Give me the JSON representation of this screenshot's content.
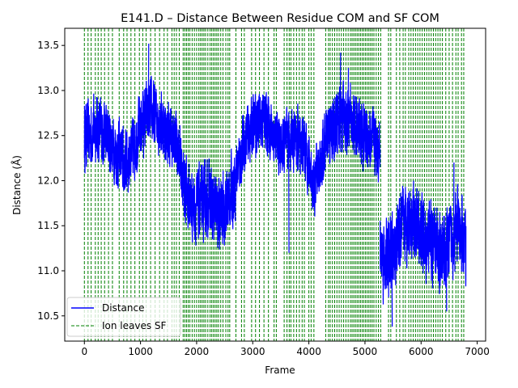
{
  "chart_data": {
    "type": "line",
    "title": "E141.D – Distance Between Residue COM and SF COM",
    "xlabel": "Frame",
    "ylabel": "Distance (Å)",
    "xlim": [
      -350,
      7150
    ],
    "ylim": [
      10.22,
      13.69
    ],
    "xticks": [
      0,
      1000,
      2000,
      3000,
      4000,
      5000,
      6000,
      7000
    ],
    "yticks": [
      10.5,
      11.0,
      11.5,
      12.0,
      12.5,
      13.0,
      13.5
    ],
    "grid": false,
    "legend": {
      "placement": "lower-left",
      "entries": [
        {
          "label": "Distance",
          "color": "#0000ff",
          "style": "solid"
        },
        {
          "label": "Ion leaves SF",
          "color": "#008000",
          "style": "dashed"
        }
      ]
    },
    "series": [
      {
        "name": "Distance",
        "color": "#0000ff",
        "segments": [
          {
            "x": [
              0,
              100,
              200,
              300,
              400,
              500,
              600,
              700,
              800,
              900,
              1000,
              1100,
              1200,
              1300,
              1400,
              1500,
              1600,
              1700
            ],
            "mean": [
              12.5,
              12.5,
              12.6,
              12.55,
              12.5,
              12.4,
              12.3,
              12.2,
              12.25,
              12.4,
              12.6,
              12.7,
              12.75,
              12.7,
              12.6,
              12.5,
              12.45,
              12.35
            ],
            "amp": 0.32
          },
          {
            "x": [
              1700,
              1800,
              1900,
              2000,
              2100,
              2200,
              2300,
              2400,
              2500,
              2600,
              2700
            ],
            "mean": [
              12.2,
              11.9,
              11.75,
              11.7,
              11.75,
              11.8,
              11.7,
              11.6,
              11.7,
              11.85,
              12.0
            ],
            "amp": 0.35
          },
          {
            "x": [
              2700,
              2800,
              2900,
              3000,
              3100,
              3200,
              3300,
              3400,
              3500,
              3600,
              3700,
              3800,
              3900,
              4000,
              4100
            ],
            "mean": [
              12.1,
              12.3,
              12.5,
              12.6,
              12.65,
              12.7,
              12.6,
              12.5,
              12.35,
              12.4,
              12.5,
              12.45,
              12.4,
              12.2,
              11.9
            ],
            "amp": 0.3
          },
          {
            "x": [
              4100,
              4200,
              4300,
              4400,
              4500,
              4600,
              4700,
              4800,
              4900,
              5000,
              5100,
              5200,
              5270
            ],
            "mean": [
              11.95,
              12.2,
              12.4,
              12.55,
              12.65,
              12.7,
              12.7,
              12.6,
              12.55,
              12.5,
              12.45,
              12.4,
              12.35
            ],
            "amp": 0.33
          },
          {
            "x": [
              5270,
              5400,
              5500,
              5600,
              5700,
              5800,
              5900,
              6000,
              6100,
              6200,
              6300,
              6400,
              6500,
              6600,
              6700,
              6800
            ],
            "mean": [
              11.2,
              11.1,
              11.2,
              11.35,
              11.5,
              11.6,
              11.55,
              11.4,
              11.3,
              11.3,
              11.25,
              11.2,
              11.3,
              11.45,
              11.4,
              11.3
            ],
            "amp": 0.38
          }
        ],
        "spikes": [
          {
            "x": 1140,
            "y": 13.52
          },
          {
            "x": 4560,
            "y": 13.42
          },
          {
            "x": 4700,
            "y": 13.25
          },
          {
            "x": 6580,
            "y": 12.2
          },
          {
            "x": 5860,
            "y": 12.0
          },
          {
            "x": 5480,
            "y": 10.38
          },
          {
            "x": 6450,
            "y": 10.55
          },
          {
            "x": 3640,
            "y": 11.2
          },
          {
            "x": 1980,
            "y": 11.28
          }
        ]
      },
      {
        "name": "Ion leaves SF",
        "color": "#008000",
        "style": "dashed",
        "x": [
          0,
          65,
          120,
          195,
          245,
          300,
          360,
          430,
          500,
          620,
          700,
          760,
          830,
          900,
          980,
          1040,
          1100,
          1180,
          1260,
          1340,
          1420,
          1480,
          1560,
          1600,
          1640,
          1690,
          1760,
          1790,
          1820,
          1850,
          1880,
          1920,
          1960,
          2000,
          2040,
          2070,
          2100,
          2130,
          2160,
          2200,
          2240,
          2270,
          2300,
          2330,
          2360,
          2390,
          2430,
          2470,
          2520,
          2560,
          2590,
          2700,
          2800,
          2850,
          2980,
          3050,
          3120,
          3200,
          3280,
          3380,
          3420,
          3560,
          3610,
          3650,
          3680,
          3730,
          3780,
          3830,
          3880,
          3920,
          4000,
          4040,
          4090,
          4300,
          4350,
          4380,
          4420,
          4460,
          4500,
          4540,
          4580,
          4620,
          4660,
          4700,
          4740,
          4770,
          4800,
          4830,
          4860,
          4890,
          4920,
          4950,
          4980,
          5010,
          5040,
          5070,
          5100,
          5130,
          5160,
          5200,
          5240,
          5280,
          5420,
          5460,
          5560,
          5620,
          5680,
          5720,
          5780,
          5820,
          5860,
          5900,
          5940,
          5980,
          6020,
          6060,
          6100,
          6140,
          6180,
          6220,
          6260,
          6300,
          6340,
          6380,
          6440,
          6500,
          6560,
          6620,
          6660,
          6720,
          6760
        ]
      }
    ]
  }
}
